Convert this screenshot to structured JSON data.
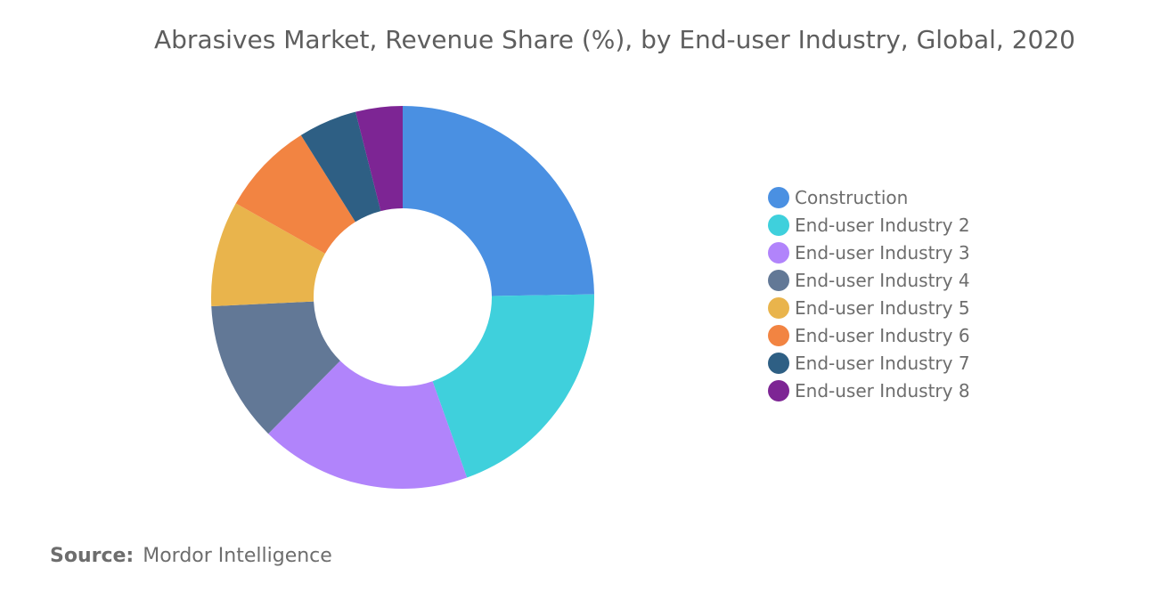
{
  "chart_data": {
    "type": "pie",
    "title": "Abrasives Market, Revenue Share (%), by End-user Industry, Global, 2020",
    "categories": [
      "Construction",
      "End-user Industry 2",
      "End-user Industry 3",
      "End-user Industry 4",
      "End-user Industry 5",
      "End-user Industry 6",
      "End-user Industry 7",
      "End-user Industry 8"
    ],
    "values": [
      25,
      20,
      18,
      12,
      9,
      8,
      5,
      4
    ],
    "colors": [
      "#4a90e2",
      "#3fd0dc",
      "#b184fb",
      "#627896",
      "#e9b44c",
      "#f28442",
      "#2e5f84",
      "#7d2594"
    ],
    "legend_position": "right"
  },
  "source": {
    "label": "Source:",
    "value": "Mordor Intelligence"
  }
}
